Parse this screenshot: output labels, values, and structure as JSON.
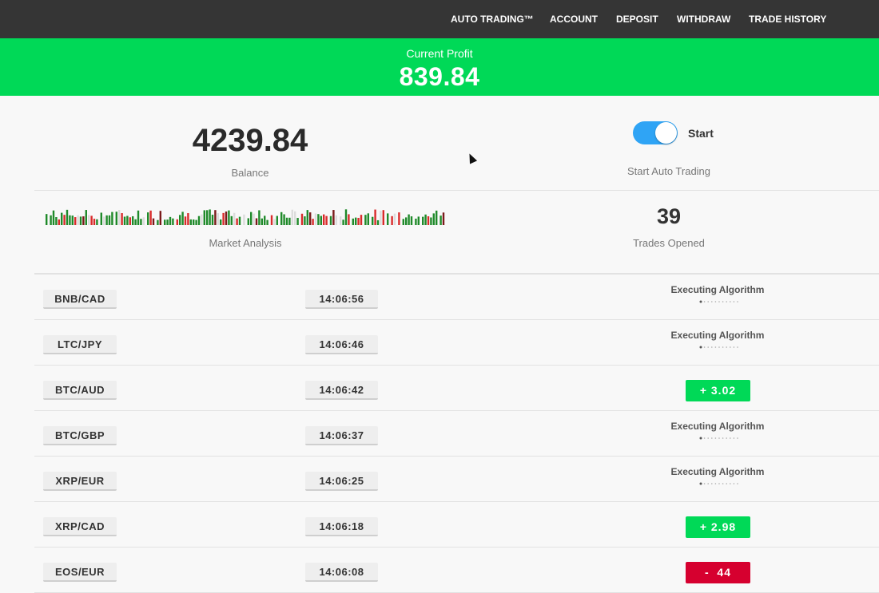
{
  "nav": {
    "items": [
      "AUTO TRADING™",
      "ACCOUNT",
      "DEPOSIT",
      "WITHDRAW",
      "TRADE HISTORY"
    ]
  },
  "profit": {
    "label": "Current Profit",
    "value": "839.84"
  },
  "balance": {
    "value": "4239.84",
    "label": "Balance"
  },
  "auto_trading": {
    "toggle_on": true,
    "toggle_label": "Start",
    "label": "Start Auto Trading"
  },
  "market": {
    "label": "Market Analysis"
  },
  "trades": {
    "value": "39",
    "label": "Trades Opened"
  },
  "colors": {
    "profit_band": "#00d957",
    "positive": "#00d957",
    "negative": "#d6002f",
    "toggle": "#2fa4f5"
  },
  "rows": [
    {
      "pair": "BNB/CAD",
      "time": "14:06:56",
      "status": "Executing Algorithm",
      "result": null
    },
    {
      "pair": "LTC/JPY",
      "time": "14:06:46",
      "status": "Executing Algorithm",
      "result": null
    },
    {
      "pair": "BTC/AUD",
      "time": "14:06:42",
      "status": null,
      "result": "+ 3.02",
      "positive": true
    },
    {
      "pair": "BTC/GBP",
      "time": "14:06:37",
      "status": "Executing Algorithm",
      "result": null
    },
    {
      "pair": "XRP/EUR",
      "time": "14:06:25",
      "status": "Executing Algorithm",
      "result": null
    },
    {
      "pair": "XRP/CAD",
      "time": "14:06:18",
      "status": null,
      "result": "+ 2.98",
      "positive": true
    },
    {
      "pair": "EOS/EUR",
      "time": "14:06:08",
      "status": null,
      "result": "-  44",
      "positive": false
    }
  ]
}
